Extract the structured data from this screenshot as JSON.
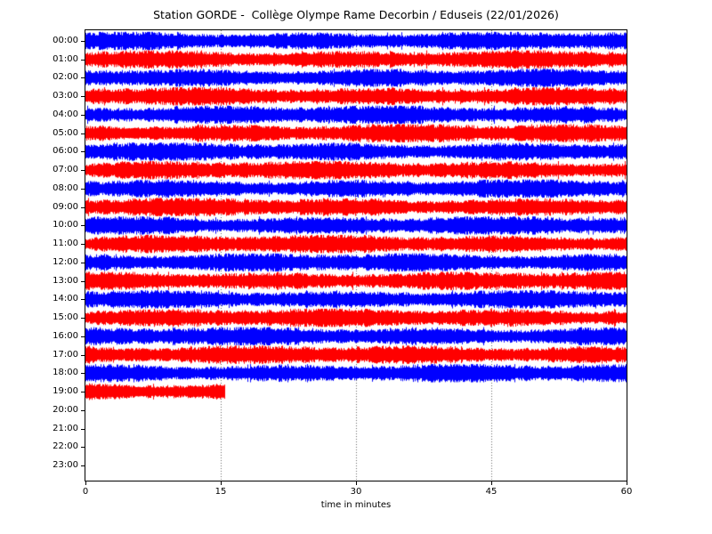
{
  "page": {
    "background": "#ffffff"
  },
  "chart_data": {
    "type": "seismogram",
    "subtype": "helicorder-day-plot",
    "title": "Station GORDE -  Collège Olympe Rame Decorbin / Eduseis (22/01/2026)",
    "xlabel": "time in minutes",
    "xlim": [
      0,
      60
    ],
    "x_ticks": [
      0,
      15,
      30,
      45,
      60
    ],
    "x_tick_labels": [
      "0",
      "15",
      "30",
      "45",
      "60"
    ],
    "x_gridlines": [
      15,
      30,
      45
    ],
    "grid_style": "dotted",
    "grid_color": "#666666",
    "spine_color": "#000000",
    "trace_colors": {
      "even_hours": "#0000ff",
      "odd_hours": "#ff0000"
    },
    "amplitude_rel": 0.41,
    "notes": "One noise trace per hour, alternating blue/red. Hours 00:00-18:00 cover the full 60 minutes; the 19:00 trace stops at about 15.5 minutes; hours 20:00-23:00 contain no data.",
    "rows": [
      {
        "hour": "00:00",
        "has_trace": true,
        "color": "#0000ff",
        "start_min": 0,
        "end_min": 60
      },
      {
        "hour": "01:00",
        "has_trace": true,
        "color": "#ff0000",
        "start_min": 0,
        "end_min": 60
      },
      {
        "hour": "02:00",
        "has_trace": true,
        "color": "#0000ff",
        "start_min": 0,
        "end_min": 60
      },
      {
        "hour": "03:00",
        "has_trace": true,
        "color": "#ff0000",
        "start_min": 0,
        "end_min": 60
      },
      {
        "hour": "04:00",
        "has_trace": true,
        "color": "#0000ff",
        "start_min": 0,
        "end_min": 60
      },
      {
        "hour": "05:00",
        "has_trace": true,
        "color": "#ff0000",
        "start_min": 0,
        "end_min": 60
      },
      {
        "hour": "06:00",
        "has_trace": true,
        "color": "#0000ff",
        "start_min": 0,
        "end_min": 60
      },
      {
        "hour": "07:00",
        "has_trace": true,
        "color": "#ff0000",
        "start_min": 0,
        "end_min": 60
      },
      {
        "hour": "08:00",
        "has_trace": true,
        "color": "#0000ff",
        "start_min": 0,
        "end_min": 60
      },
      {
        "hour": "09:00",
        "has_trace": true,
        "color": "#ff0000",
        "start_min": 0,
        "end_min": 60
      },
      {
        "hour": "10:00",
        "has_trace": true,
        "color": "#0000ff",
        "start_min": 0,
        "end_min": 60
      },
      {
        "hour": "11:00",
        "has_trace": true,
        "color": "#ff0000",
        "start_min": 0,
        "end_min": 60
      },
      {
        "hour": "12:00",
        "has_trace": true,
        "color": "#0000ff",
        "start_min": 0,
        "end_min": 60
      },
      {
        "hour": "13:00",
        "has_trace": true,
        "color": "#ff0000",
        "start_min": 0,
        "end_min": 60
      },
      {
        "hour": "14:00",
        "has_trace": true,
        "color": "#0000ff",
        "start_min": 0,
        "end_min": 60
      },
      {
        "hour": "15:00",
        "has_trace": true,
        "color": "#ff0000",
        "start_min": 0,
        "end_min": 60
      },
      {
        "hour": "16:00",
        "has_trace": true,
        "color": "#0000ff",
        "start_min": 0,
        "end_min": 60
      },
      {
        "hour": "17:00",
        "has_trace": true,
        "color": "#ff0000",
        "start_min": 0,
        "end_min": 60
      },
      {
        "hour": "18:00",
        "has_trace": true,
        "color": "#0000ff",
        "start_min": 0,
        "end_min": 60
      },
      {
        "hour": "19:00",
        "has_trace": true,
        "color": "#ff0000",
        "start_min": 0,
        "end_min": 15.5
      },
      {
        "hour": "20:00",
        "has_trace": false,
        "color": null,
        "start_min": null,
        "end_min": null
      },
      {
        "hour": "21:00",
        "has_trace": false,
        "color": null,
        "start_min": null,
        "end_min": null
      },
      {
        "hour": "22:00",
        "has_trace": false,
        "color": null,
        "start_min": null,
        "end_min": null
      },
      {
        "hour": "23:00",
        "has_trace": false,
        "color": null,
        "start_min": null,
        "end_min": null
      }
    ]
  }
}
